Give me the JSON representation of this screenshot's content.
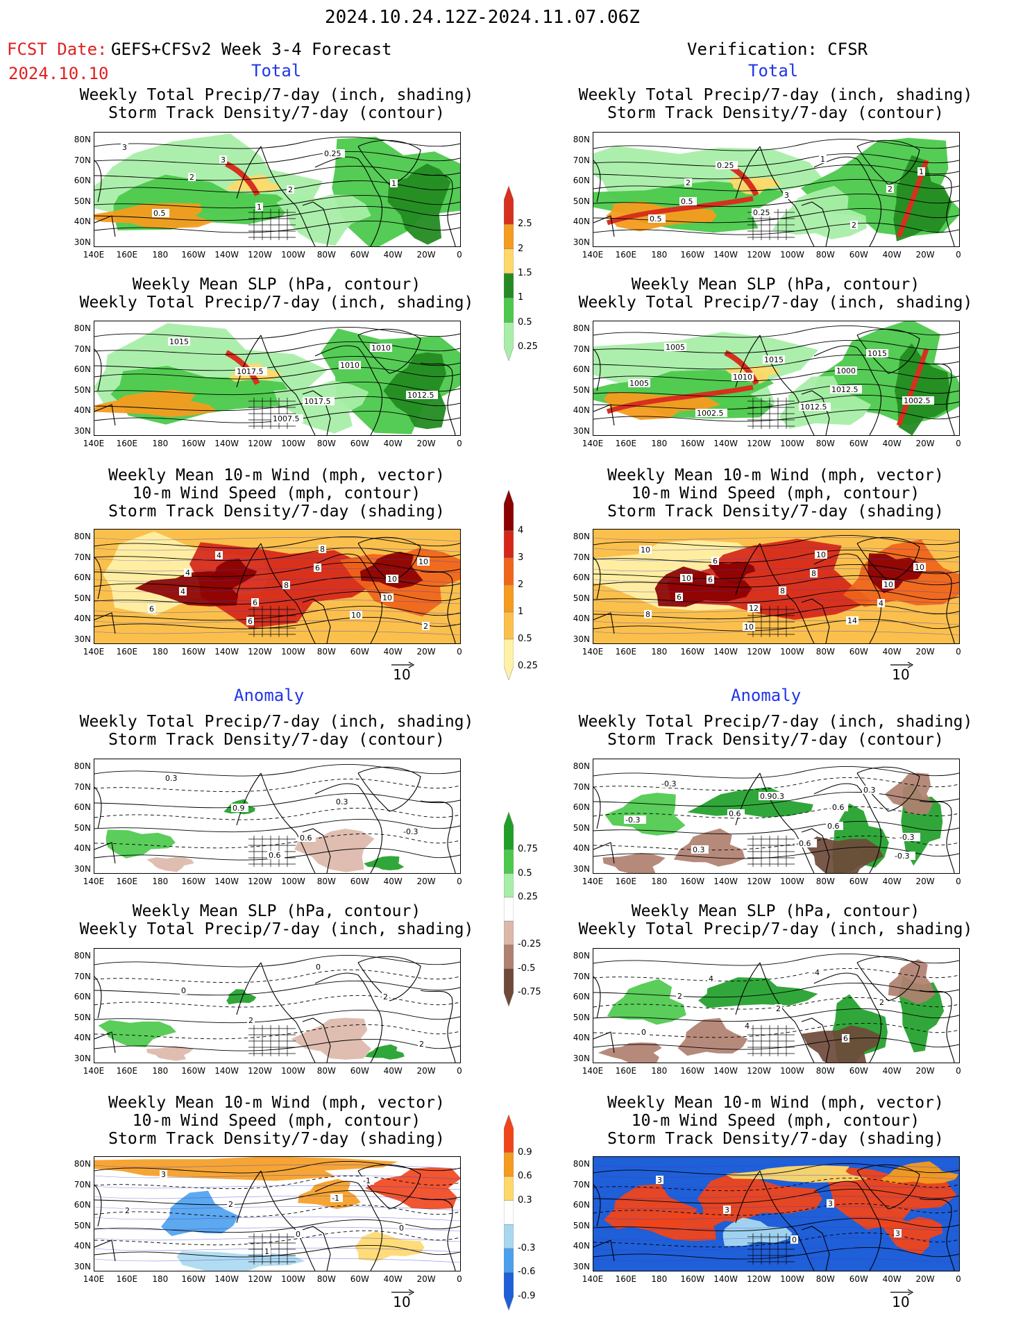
{
  "header": {
    "period": "2024.10.24.12Z-2024.11.07.06Z",
    "fcst_label": "FCST Date:",
    "fcst_date": "2024.10.10",
    "model": "GEFS+CFSv2 Week 3-4 Forecast",
    "verification": "Verification: CFSR"
  },
  "sections": {
    "total": "Total",
    "anomaly": "Anomaly"
  },
  "titles": {
    "precip_storm": [
      "Weekly Total Precip/7-day (inch, shading)",
      "Storm Track Density/7-day (contour)"
    ],
    "slp_precip": [
      "Weekly Mean SLP (hPa, contour)",
      "Weekly Total Precip/7-day (inch, shading)"
    ],
    "wind_storm": [
      "Weekly Mean 10-m Wind (mph, vector)",
      "10-m Wind Speed (mph, contour)",
      "Storm Track Density/7-day (shading)"
    ]
  },
  "axes": {
    "lat_labels": [
      "80N",
      "70N",
      "60N",
      "50N",
      "40N",
      "30N"
    ],
    "lon_labels": [
      "140E",
      "160E",
      "180",
      "160W",
      "140W",
      "120W",
      "100W",
      "80W",
      "60W",
      "40W",
      "20W",
      "0"
    ]
  },
  "vector_ref": "10",
  "colorbars": {
    "precip_total": {
      "labels": [
        "2.5",
        "2",
        "1.5",
        "1",
        "0.5",
        "0.25"
      ],
      "colors": [
        "#d7301f",
        "#f59b1f",
        "#ffd86a",
        "#238b22",
        "#4cc94c",
        "#a8eea8"
      ]
    },
    "storm_total": {
      "labels": [
        "4",
        "3",
        "2",
        "1",
        "0.5",
        "0.25"
      ],
      "colors": [
        "#8b0000",
        "#d62618",
        "#f0641a",
        "#f59b1f",
        "#fbc04c",
        "#fff2a8"
      ]
    },
    "precip_anom": {
      "labels": [
        "0.75",
        "0.5",
        "0.25",
        "-0.25",
        "-0.5",
        "-0.75"
      ],
      "colors": [
        "#1f9f2a",
        "#4cc94c",
        "#a8eea8",
        "#ffffff",
        "#dcb8aa",
        "#b08070",
        "#6e4a3a"
      ]
    },
    "storm_anom": {
      "labels": [
        "0.9",
        "0.6",
        "0.3",
        "-0.3",
        "-0.6",
        "-0.9"
      ],
      "colors": [
        "#f0441a",
        "#f59b1f",
        "#ffd86a",
        "#ffffff",
        "#a8d8f0",
        "#4aa0ee",
        "#1f5fd8"
      ]
    }
  },
  "panel_annotations": {
    "f1": [
      "3",
      "2",
      "1",
      "0.25",
      "1",
      "0.5",
      "3",
      "2"
    ],
    "v1": [
      "2",
      "0.25",
      "1",
      "2",
      "0.5",
      "0.25",
      "3",
      "2",
      "1",
      "0.5"
    ],
    "f2": [
      "1007.5",
      "1010",
      "1012.5",
      "1015",
      "1017.5",
      "1017.5",
      "1010"
    ],
    "v2": [
      "1000",
      "1002.5",
      "1005",
      "1010",
      "1012.5",
      "1015",
      "1005",
      "1002.5",
      "1015",
      "1012.5"
    ],
    "f3": [
      "2",
      "4",
      "6",
      "8",
      "10",
      "6",
      "4",
      "8",
      "10",
      "10",
      "4",
      "6",
      "6",
      "10"
    ],
    "v3": [
      "10",
      "12",
      "10",
      "10",
      "8",
      "6",
      "8",
      "14",
      "10",
      "6",
      "10",
      "8",
      "4",
      "10",
      "6"
    ],
    "fa1": [
      "0.6",
      "0.3",
      "-0.3",
      "0.3",
      "0.9",
      "0.6"
    ],
    "va1": [
      "0.6",
      "-0.3",
      "-0.3",
      "0.6",
      "-0.6",
      "0.3",
      "-0.3",
      "0.3",
      "0.90.3",
      "0.6",
      "-0.3"
    ],
    "fa2": [
      "2",
      "0",
      "2",
      "0",
      "2"
    ],
    "va2": [
      "2",
      "4",
      "-4",
      "2",
      "0",
      "4",
      "2",
      "6"
    ],
    "fa3": [
      "1",
      "-1",
      "0",
      "3",
      "2",
      "0",
      "-1",
      "2"
    ],
    "va3": [
      "3",
      "3",
      "3",
      "3",
      "0"
    ]
  }
}
